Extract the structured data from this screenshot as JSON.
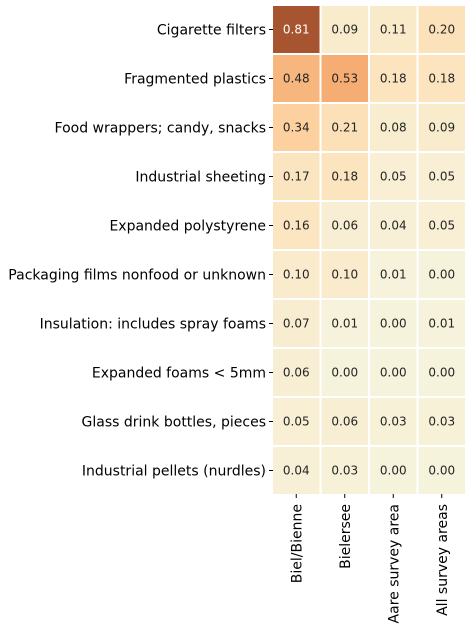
{
  "chart_data": {
    "type": "heatmap",
    "rows": [
      "Cigarette filters",
      "Fragmented plastics",
      "Food wrappers; candy, snacks",
      "Industrial sheeting",
      "Expanded polystyrene",
      "Packaging films nonfood or unknown",
      "Insulation: includes spray foams",
      "Expanded foams < 5mm",
      "Glass drink bottles, pieces",
      "Industrial pellets (nurdles)"
    ],
    "columns": [
      "Biel/Bienne",
      "Bielersee",
      "Aare survey area",
      "All survey areas"
    ],
    "values": [
      [
        0.81,
        0.09,
        0.11,
        0.2
      ],
      [
        0.48,
        0.53,
        0.18,
        0.18
      ],
      [
        0.34,
        0.21,
        0.08,
        0.09
      ],
      [
        0.17,
        0.18,
        0.05,
        0.05
      ],
      [
        0.16,
        0.06,
        0.04,
        0.05
      ],
      [
        0.1,
        0.1,
        0.01,
        0.0
      ],
      [
        0.07,
        0.01,
        0.0,
        0.01
      ],
      [
        0.06,
        0.0,
        0.0,
        0.0
      ],
      [
        0.05,
        0.06,
        0.03,
        0.03
      ],
      [
        0.04,
        0.03,
        0.0,
        0.0
      ]
    ],
    "value_format": "2dp",
    "colorbar": false,
    "colormap": [
      "#f6f3dd",
      "#fbe6c1",
      "#fdd3a4",
      "#f8b57e",
      "#ef9656",
      "#a65530"
    ]
  }
}
